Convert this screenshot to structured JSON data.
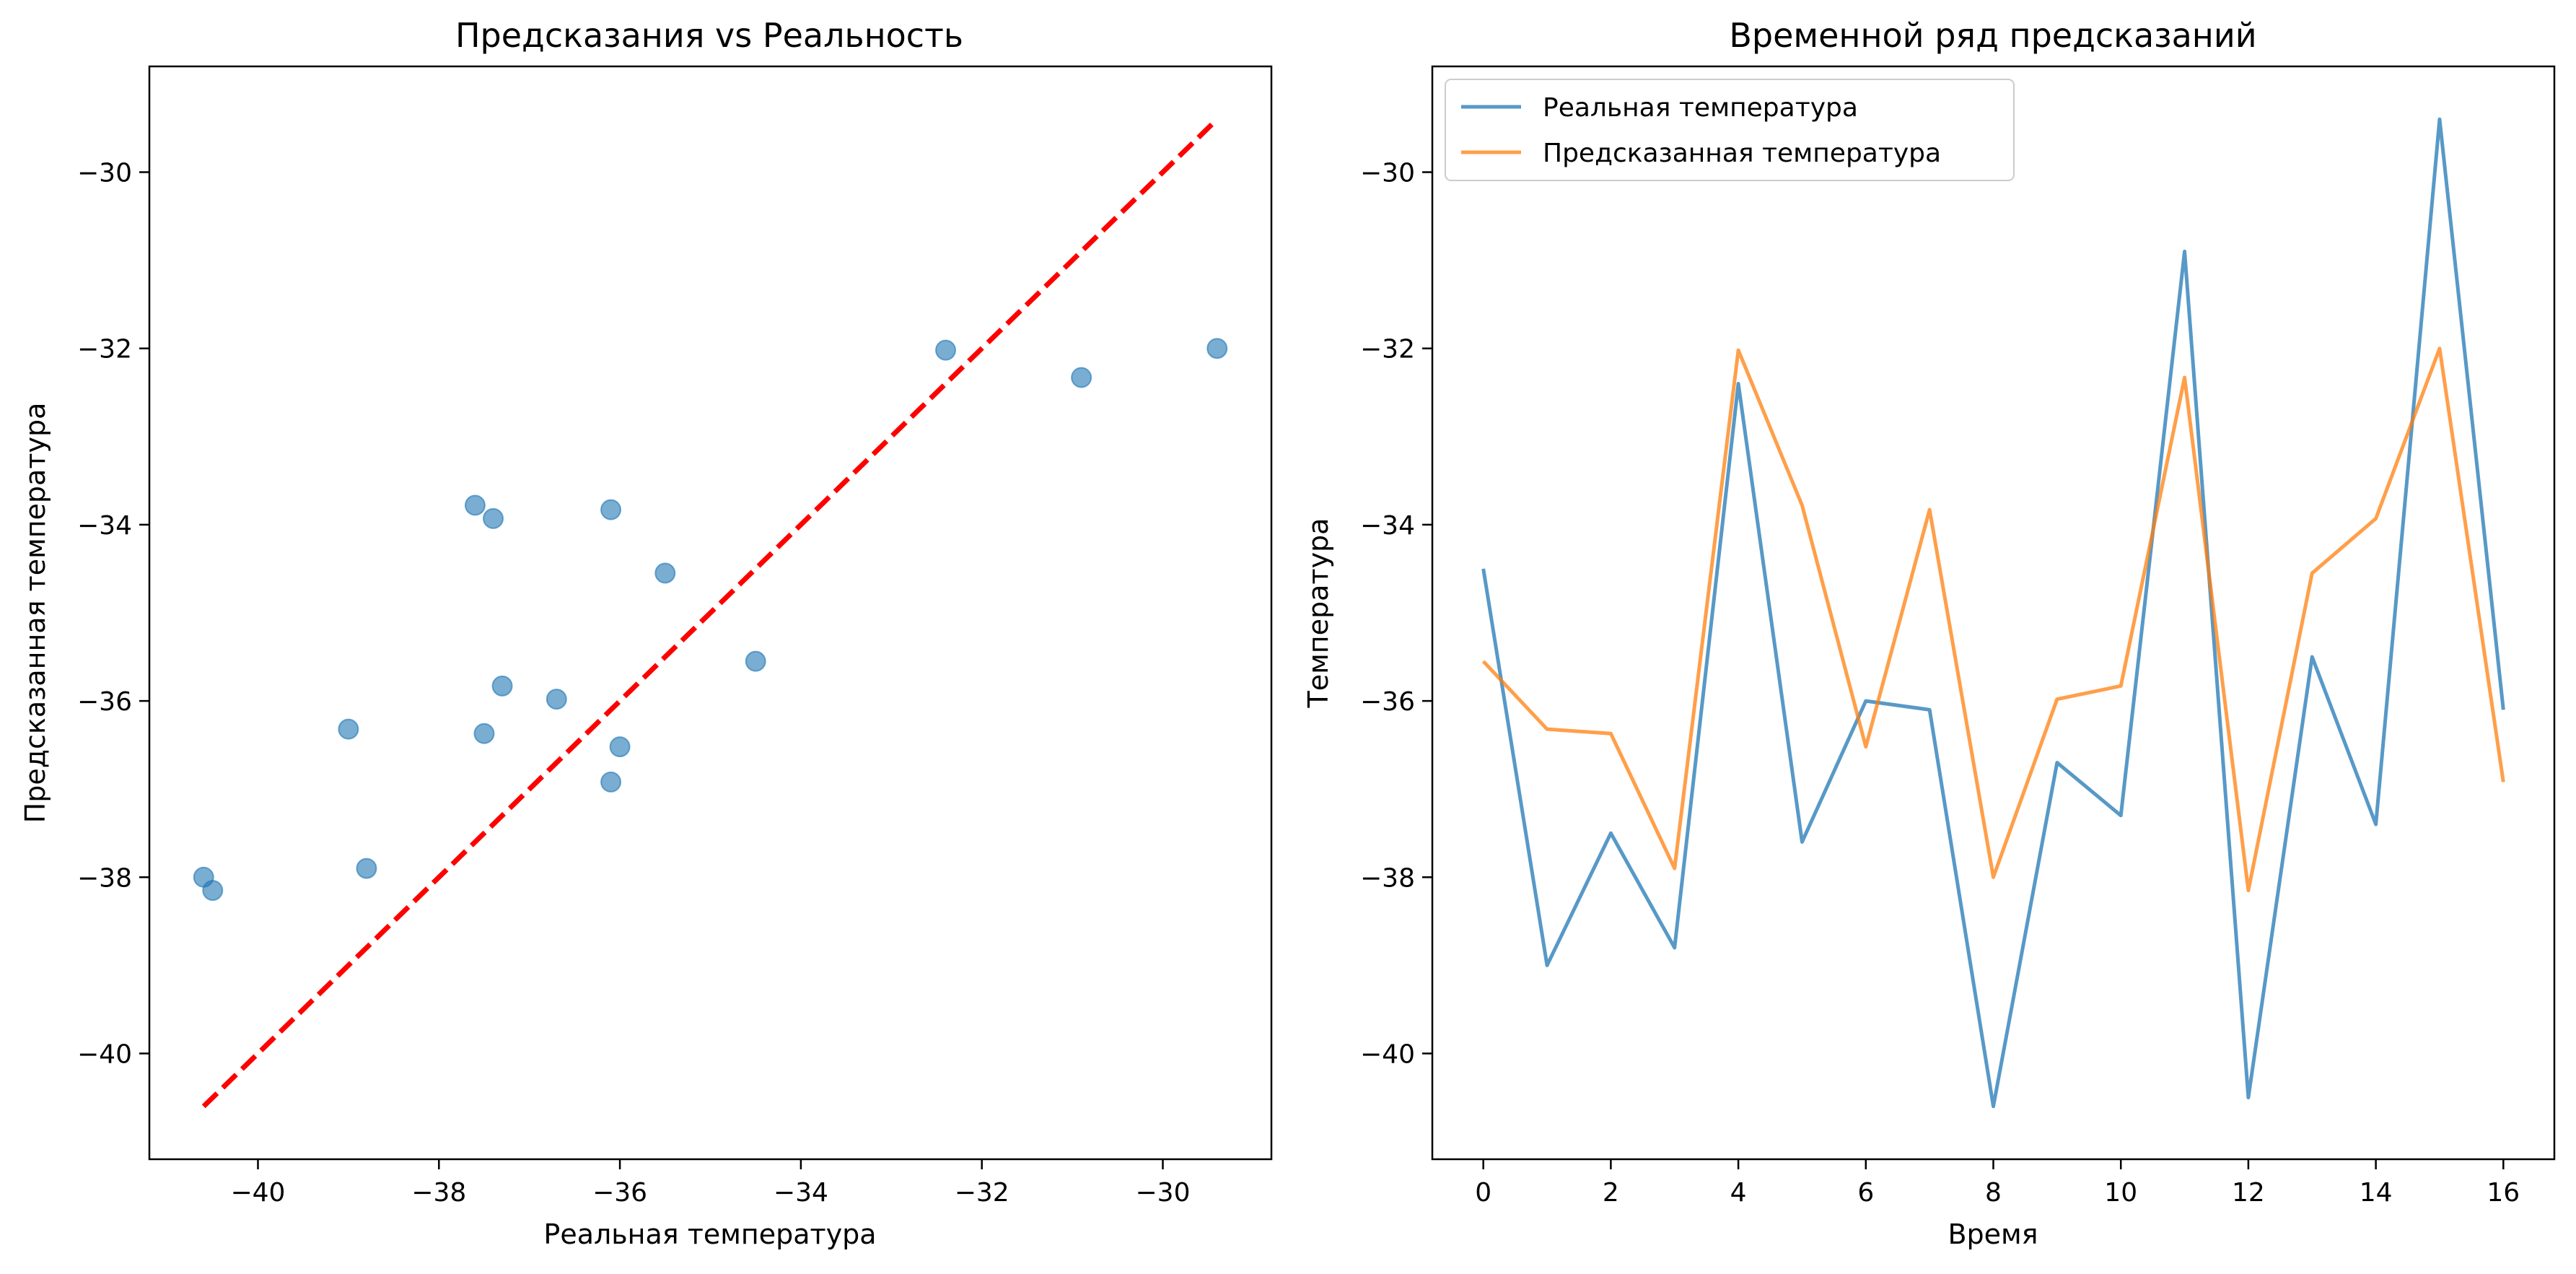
{
  "colors": {
    "real": "#1f77b4",
    "predicted": "#ff7f0e",
    "ideal_line": "#ff0000"
  },
  "chart_data": [
    {
      "type": "scatter",
      "title": "Предсказания vs Реальность",
      "xlabel": "Реальная температура",
      "ylabel": "Предсказанная температура",
      "xlim": [
        -41.2,
        -28.8
      ],
      "ylim": [
        -41.2,
        -28.8
      ],
      "xticks": [
        -40,
        -38,
        -36,
        -34,
        -32,
        -30
      ],
      "yticks": [
        -40,
        -38,
        -36,
        -34,
        -32,
        -30
      ],
      "tick_labels": [
        "−40",
        "−38",
        "−36",
        "−34",
        "−32",
        "−30"
      ],
      "points": [
        {
          "x": -34.5,
          "y": -35.55
        },
        {
          "x": -39.0,
          "y": -36.32
        },
        {
          "x": -37.5,
          "y": -36.37
        },
        {
          "x": -38.8,
          "y": -37.9
        },
        {
          "x": -32.4,
          "y": -32.02
        },
        {
          "x": -37.6,
          "y": -33.78
        },
        {
          "x": -36.0,
          "y": -36.52
        },
        {
          "x": -36.1,
          "y": -36.92
        },
        {
          "x": -40.6,
          "y": -38.0
        },
        {
          "x": -36.7,
          "y": -35.98
        },
        {
          "x": -37.3,
          "y": -35.83
        },
        {
          "x": -30.9,
          "y": -32.33
        },
        {
          "x": -40.5,
          "y": -38.15
        },
        {
          "x": -35.5,
          "y": -34.55
        },
        {
          "x": -37.4,
          "y": -33.93
        },
        {
          "x": -29.4,
          "y": -32.0
        },
        {
          "x": -36.1,
          "y": -33.83
        }
      ],
      "reference_line": {
        "from": [
          -40.6,
          -40.6
        ],
        "to": [
          -29.4,
          -29.4
        ],
        "style": "dashed"
      }
    },
    {
      "type": "line",
      "title": "Временной ряд предсказаний",
      "xlabel": "Время",
      "ylabel": "Температура",
      "xlim": [
        -0.8,
        16.8
      ],
      "ylim": [
        -41.2,
        -28.8
      ],
      "xticks": [
        0,
        2,
        4,
        6,
        8,
        10,
        12,
        14,
        16
      ],
      "xtick_labels": [
        "0",
        "2",
        "4",
        "6",
        "8",
        "10",
        "12",
        "14",
        "16"
      ],
      "yticks": [
        -40,
        -38,
        -36,
        -34,
        -32,
        -30
      ],
      "ytick_labels": [
        "−40",
        "−38",
        "−36",
        "−34",
        "−32",
        "−30"
      ],
      "legend_position": "top-left",
      "x": [
        0,
        1,
        2,
        3,
        4,
        5,
        6,
        7,
        8,
        9,
        10,
        11,
        12,
        13,
        14,
        15,
        16
      ],
      "series": [
        {
          "name": "Реальная температура",
          "values": [
            -34.5,
            -39.0,
            -37.5,
            -38.8,
            -32.4,
            -37.6,
            -36.0,
            -36.1,
            -40.6,
            -36.7,
            -37.3,
            -30.9,
            -40.5,
            -35.5,
            -37.4,
            -29.4,
            -36.1
          ]
        },
        {
          "name": "Предсказанная температура",
          "values": [
            -35.55,
            -36.32,
            -36.37,
            -37.9,
            -32.02,
            -33.78,
            -36.52,
            -33.83,
            -38.0,
            -35.98,
            -35.83,
            -32.33,
            -38.15,
            -34.55,
            -33.93,
            -32.0,
            -36.92
          ]
        }
      ]
    }
  ]
}
